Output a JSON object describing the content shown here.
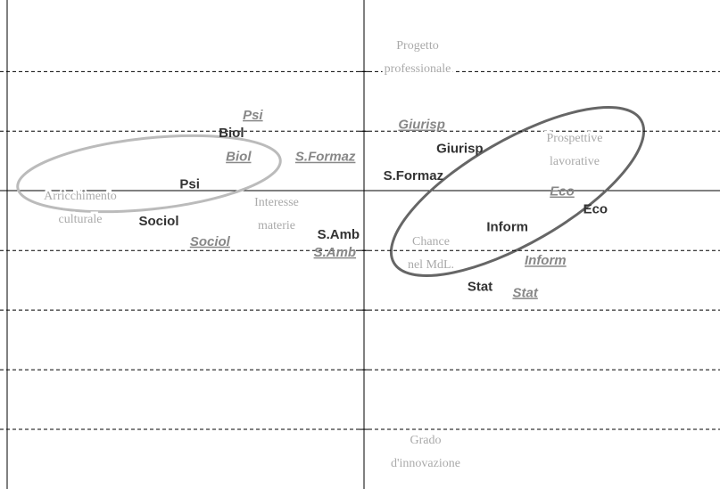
{
  "chart_data": {
    "type": "scatter",
    "xlim": [
      -3,
      3
    ],
    "ylim": [
      -2.5,
      1.6
    ],
    "yticks": [
      -2,
      -1.5,
      -1,
      -0.5,
      0.5,
      1
    ],
    "grid": true,
    "series": [
      {
        "color": "#333333",
        "style": "bold",
        "labels": [
          "Biol",
          "Psi",
          "Sociol",
          "S.Amb",
          "Giurisp",
          "S.Formaz",
          "Inform",
          "Eco",
          "Stat"
        ],
        "x": [
          -1.1,
          -1.45,
          -1.71,
          -0.2,
          0.82,
          0.43,
          1.22,
          1.96,
          0.99
        ],
        "values": [
          0.48,
          0.05,
          -0.26,
          -0.37,
          0.35,
          0.12,
          -0.31,
          -0.16,
          -0.81
        ]
      },
      {
        "color": "#888888",
        "style": "italic",
        "labels": [
          "Psi",
          "Biol",
          "S.Formaz",
          "Sociol",
          "S.Amb",
          "Giurisp",
          "Eco",
          "Inform",
          "Stat"
        ],
        "x": [
          -0.92,
          -1.04,
          -0.31,
          -1.28,
          -0.23,
          0.5,
          1.68,
          1.54,
          1.37
        ],
        "values": [
          0.63,
          0.28,
          0.28,
          -0.43,
          -0.52,
          0.55,
          -0.01,
          -0.59,
          -0.86
        ]
      }
    ],
    "annotations": [
      {
        "lines": [
          "Progetto",
          "professionale"
        ]
      },
      {
        "lines": [
          "Prospettive",
          "lavorative"
        ]
      },
      {
        "lines": [
          "Arricchimento",
          "culturale"
        ]
      },
      {
        "lines": [
          "Interesse",
          "materie"
        ]
      },
      {
        "lines": [
          "Chance",
          "nel MdL."
        ]
      },
      {
        "lines": [
          "Grado",
          "d'innovazione"
        ]
      }
    ]
  }
}
